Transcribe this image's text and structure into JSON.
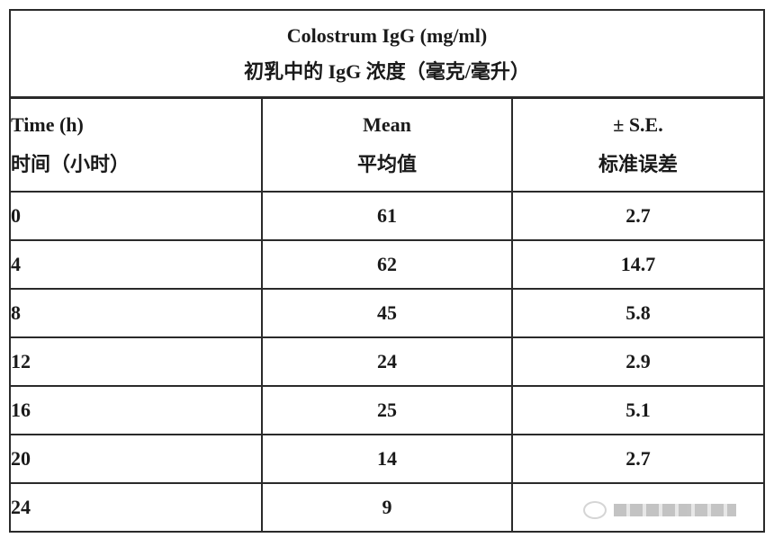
{
  "title": {
    "en": "Colostrum IgG (mg/ml)",
    "zh": "初乳中的 IgG 浓度（毫克/毫升）"
  },
  "headers": [
    {
      "en": "Time (h)",
      "zh": "时间（小时）"
    },
    {
      "en": "Mean",
      "zh": "平均值"
    },
    {
      "en": "± S.E.",
      "zh": "标准误差"
    }
  ],
  "rows": [
    {
      "time": "0",
      "mean": "61",
      "se": "2.7"
    },
    {
      "time": "4",
      "mean": "62",
      "se": "14.7"
    },
    {
      "time": "8",
      "mean": "45",
      "se": "5.8"
    },
    {
      "time": "12",
      "mean": "24",
      "se": "2.9"
    },
    {
      "time": "16",
      "mean": "25",
      "se": "5.1"
    },
    {
      "time": "20",
      "mean": "14",
      "se": "2.7"
    },
    {
      "time": "24",
      "mean": "9",
      "se": ""
    }
  ]
}
